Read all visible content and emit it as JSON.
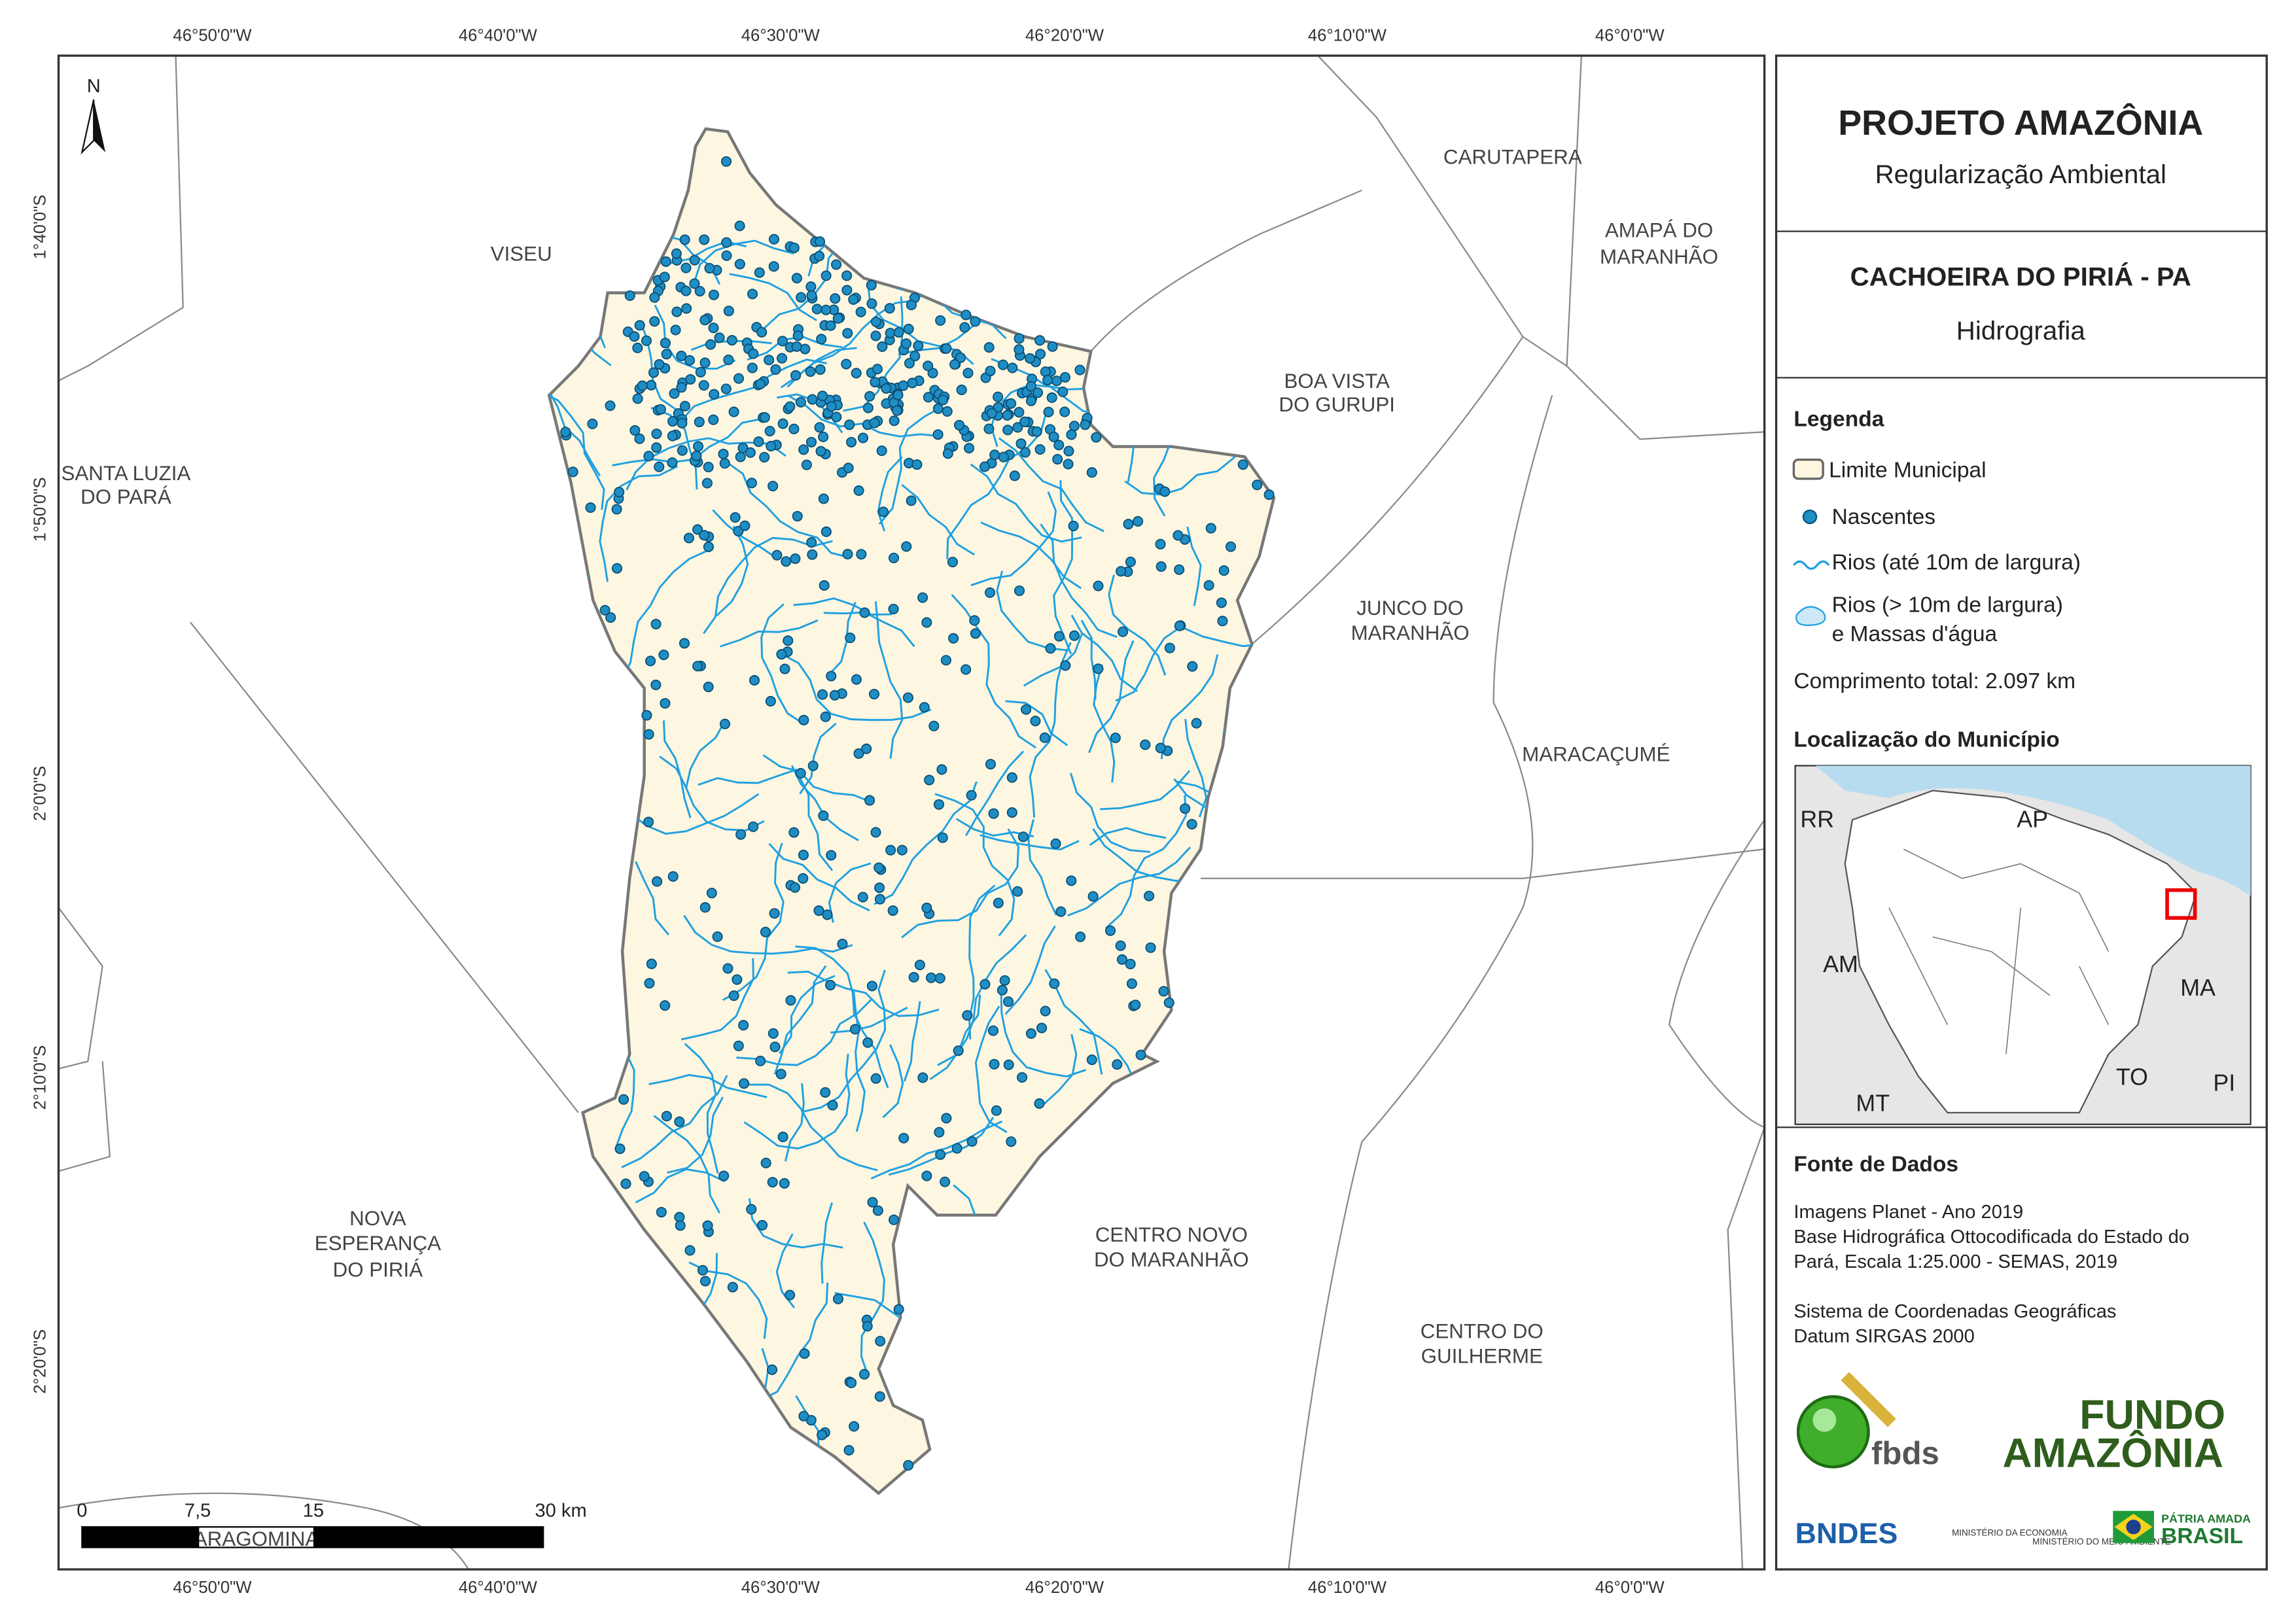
{
  "title": "PROJETO AMAZÔNIA",
  "subtitle": "Regularização Ambiental",
  "municipality": "CACHOEIRA DO PIRIÁ - PA",
  "theme": "Hidrografia",
  "longitudes": [
    "46°50'0\"W",
    "46°40'0\"W",
    "46°30'0\"W",
    "46°20'0\"W",
    "46°10'0\"W",
    "46°0'0\"W"
  ],
  "latitudes": [
    "1°40'0\"S",
    "1°50'0\"S",
    "2°0'0\"S",
    "2°10'0\"S",
    "2°20'0\"S"
  ],
  "north": "N",
  "places": [
    [
      "VISEU"
    ],
    [
      "CARUTAPERA"
    ],
    [
      "AMAPÁ DO",
      "MARANHÃO"
    ],
    [
      "BOA VISTA",
      "DO GURUPI"
    ],
    [
      "SANTA LUZIA",
      "DO PARÁ"
    ],
    [
      "JUNCO DO",
      "MARANHÃO"
    ],
    [
      "MARACAÇUMÉ"
    ],
    [
      "NOVA",
      "ESPERANÇA",
      "DO PIRIÁ"
    ],
    [
      "CENTRO NOVO",
      "DO MARANHÃO"
    ],
    [
      "CENTRO DO",
      "GUILHERME"
    ],
    [
      "ARAGOMINA"
    ]
  ],
  "scale": [
    "0",
    "7,5",
    "15",
    "30 km"
  ],
  "legend": {
    "heading": "Legenda",
    "items": [
      "Limite Municipal",
      "Nascentes",
      "Rios (até 10m de largura)",
      [
        "Rios (> 10m de largura)",
        "e Massas d'água"
      ]
    ],
    "total": "Comprimento total:  2.097 km"
  },
  "location": {
    "heading": "Localização do Município",
    "states": [
      "RR",
      "AP",
      "AM",
      "MA",
      "TO",
      "MT",
      "PI"
    ]
  },
  "sources": {
    "heading": "Fonte de Dados",
    "lines": [
      "Imagens Planet - Ano 2019",
      "Base Hidrográfica Ottocodificada do Estado do",
      "Pará, Escala 1:25.000 - SEMAS, 2019",
      "Sistema de Coordenadas Geográficas",
      "Datum SIRGAS 2000"
    ]
  },
  "logos": [
    "fbds",
    "FUNDO",
    "AMAZÔNIA",
    "BNDES",
    "MINISTÉRIO DA ECONOMIA",
    "MINISTÉRIO DO MEIO AMBIENTE",
    "PÁTRIA AMADA",
    "BRASIL"
  ]
}
